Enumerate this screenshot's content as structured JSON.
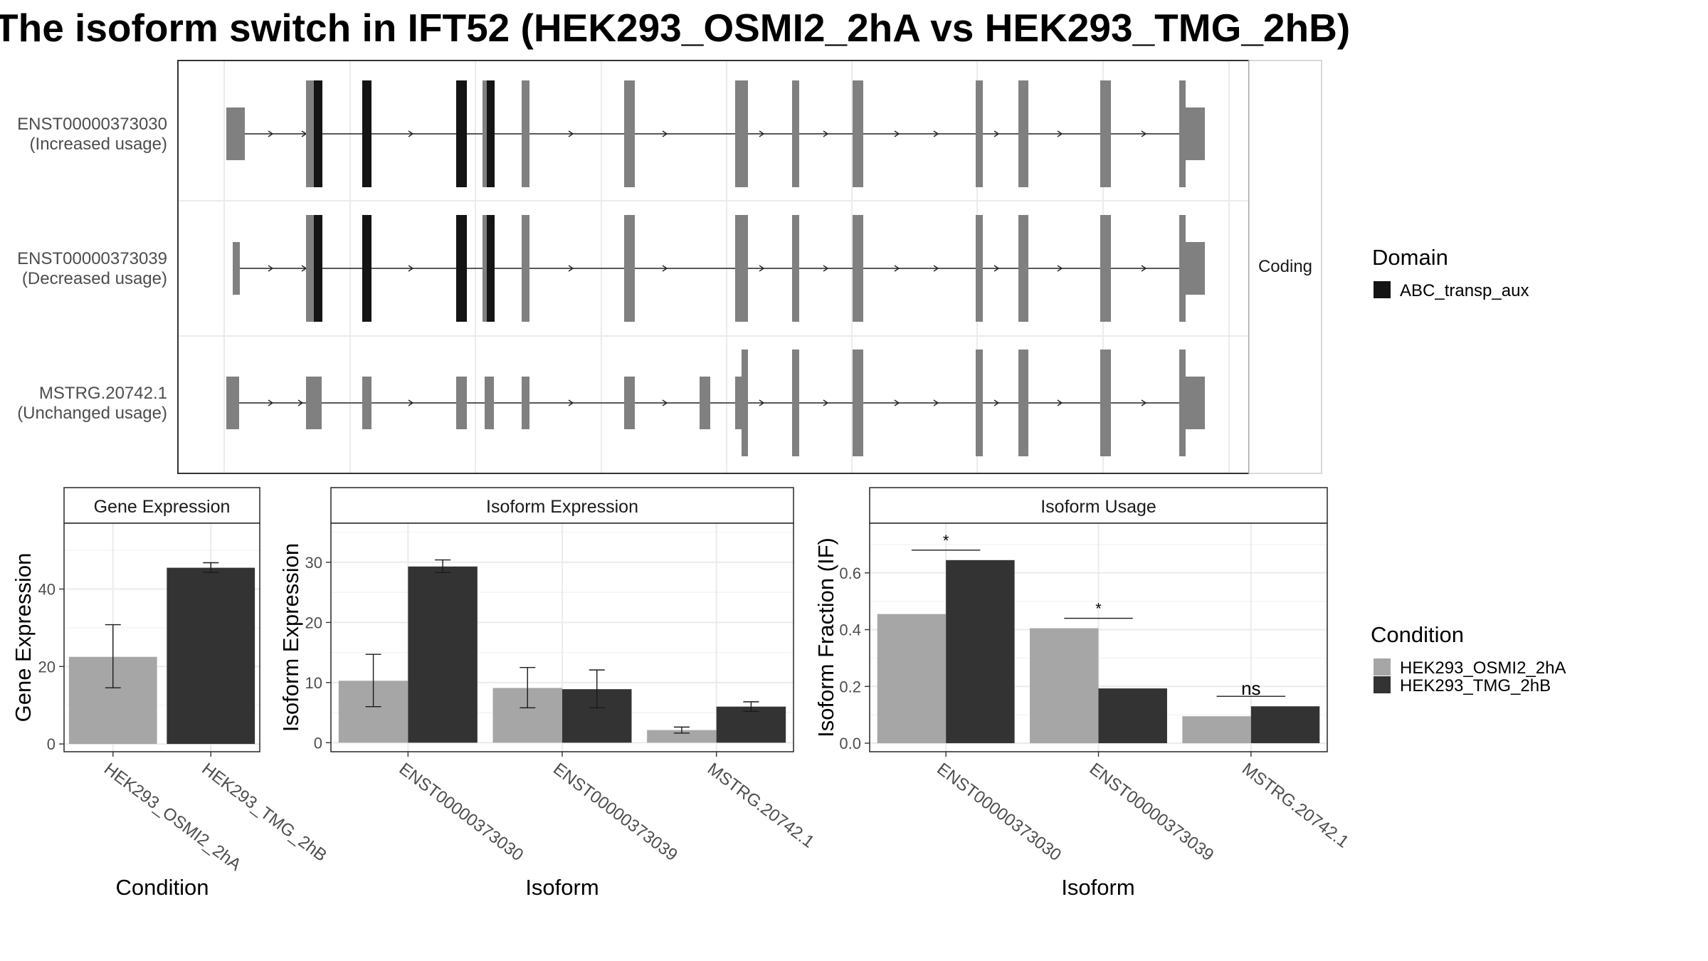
{
  "title": "The isoform switch in IFT52 (HEK293_OSMI2_2hA vs HEK293_TMG_2hB)",
  "colors": {
    "domain": "#141414",
    "exon": "#808080",
    "cond_a": "#a6a6a6",
    "cond_b": "#333333",
    "strip_bg": "#ffffff",
    "grid": "#ebebeb",
    "text": "#4d4d4d"
  },
  "structure": {
    "facet_label": "Coding",
    "isoforms": [
      {
        "name": "ENST00000373030",
        "usage": "(Increased usage)"
      },
      {
        "name": "ENST00000373039",
        "usage": "(Decreased usage)"
      },
      {
        "name": "MSTRG.20742.1",
        "usage": "(Unchanged usage)"
      }
    ]
  },
  "legends": {
    "domain": {
      "title": "Domain",
      "items": [
        {
          "label": "ABC_transp_aux",
          "color": "#141414"
        }
      ]
    },
    "condition": {
      "title": "Condition",
      "items": [
        {
          "label": "HEK293_OSMI2_2hA",
          "color": "#a6a6a6"
        },
        {
          "label": "HEK293_TMG_2hB",
          "color": "#333333"
        }
      ]
    }
  },
  "chart_data": [
    {
      "type": "bar",
      "panel": "Gene Expression",
      "xlabel": "Condition",
      "ylabel": "Gene Expression",
      "categories": [
        "HEK293_OSMI2_2hA",
        "HEK293_TMG_2hB"
      ],
      "values": [
        22.5,
        45.5
      ],
      "errors": [
        [
          14.5,
          30.8
        ],
        [
          44.3,
          46.8
        ]
      ],
      "ylim": [
        -2,
        57
      ],
      "yticks": [
        0,
        20,
        40
      ]
    },
    {
      "type": "bar",
      "panel": "Isoform Expression",
      "xlabel": "Isoform",
      "ylabel": "Isoform Expression",
      "categories": [
        "ENST00000373030",
        "ENST00000373039",
        "MSTRG.20742.1"
      ],
      "series": [
        {
          "name": "HEK293_OSMI2_2hA",
          "values": [
            10.3,
            9.1,
            2.1
          ],
          "errors": [
            [
              6.0,
              14.7
            ],
            [
              5.8,
              12.5
            ],
            [
              1.6,
              2.6
            ]
          ]
        },
        {
          "name": "HEK293_TMG_2hB",
          "values": [
            29.3,
            8.9,
            6.0
          ],
          "errors": [
            [
              28.3,
              30.4
            ],
            [
              5.8,
              12.1
            ],
            [
              5.2,
              6.8
            ]
          ]
        }
      ],
      "ylim": [
        -1.5,
        36.5
      ],
      "yticks": [
        0,
        10,
        20,
        30
      ]
    },
    {
      "type": "bar",
      "panel": "Isoform Usage",
      "xlabel": "Isoform",
      "ylabel": "Isoform Fraction (IF)",
      "categories": [
        "ENST00000373030",
        "ENST00000373039",
        "MSTRG.20742.1"
      ],
      "series": [
        {
          "name": "HEK293_OSMI2_2hA",
          "values": [
            0.455,
            0.405,
            0.095
          ]
        },
        {
          "name": "HEK293_TMG_2hB",
          "values": [
            0.645,
            0.193,
            0.13
          ]
        }
      ],
      "significance": [
        "*",
        "*",
        "ns"
      ],
      "ylim": [
        -0.03,
        0.775
      ],
      "yticks": [
        "0.0",
        "0.2",
        "0.4",
        "0.6"
      ]
    }
  ]
}
